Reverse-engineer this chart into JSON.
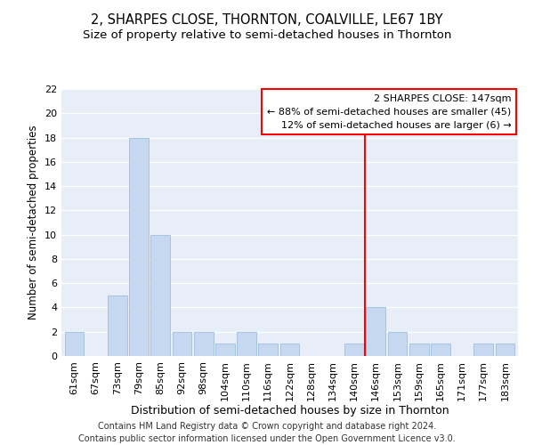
{
  "title": "2, SHARPES CLOSE, THORNTON, COALVILLE, LE67 1BY",
  "subtitle": "Size of property relative to semi-detached houses in Thornton",
  "xlabel": "Distribution of semi-detached houses by size in Thornton",
  "ylabel": "Number of semi-detached properties",
  "categories": [
    "61sqm",
    "67sqm",
    "73sqm",
    "79sqm",
    "85sqm",
    "92sqm",
    "98sqm",
    "104sqm",
    "110sqm",
    "116sqm",
    "122sqm",
    "128sqm",
    "134sqm",
    "140sqm",
    "146sqm",
    "153sqm",
    "159sqm",
    "165sqm",
    "171sqm",
    "177sqm",
    "183sqm"
  ],
  "values": [
    2,
    0,
    5,
    18,
    10,
    2,
    2,
    1,
    2,
    1,
    1,
    0,
    0,
    1,
    4,
    2,
    1,
    1,
    0,
    1,
    1
  ],
  "bar_color": "#c5d8f0",
  "bar_edge_color": "#a0bedd",
  "line_x_index": 13.5,
  "annotation_line1": "2 SHARPES CLOSE: 147sqm",
  "annotation_line2": "← 88% of semi-detached houses are smaller (45)",
  "annotation_line3": "12% of semi-detached houses are larger (6) →",
  "footer_line1": "Contains HM Land Registry data © Crown copyright and database right 2024.",
  "footer_line2": "Contains public sector information licensed under the Open Government Licence v3.0.",
  "ylim": [
    0,
    22
  ],
  "yticks": [
    0,
    2,
    4,
    6,
    8,
    10,
    12,
    14,
    16,
    18,
    20,
    22
  ],
  "bg_color": "#e8eef8",
  "title_fontsize": 10.5,
  "subtitle_fontsize": 9.5,
  "xlabel_fontsize": 9,
  "ylabel_fontsize": 8.5,
  "tick_fontsize": 8,
  "annot_fontsize": 8,
  "footer_fontsize": 7
}
